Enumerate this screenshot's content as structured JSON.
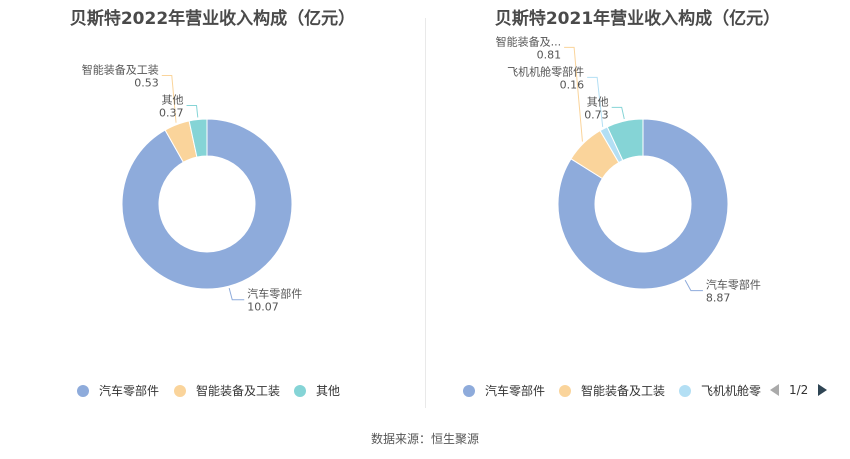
{
  "chart_data": [
    {
      "type": "pie",
      "title": "贝斯特2022年营业收入构成（亿元）",
      "unit": "亿元",
      "categories": [
        "汽车零部件",
        "智能装备及工装",
        "其他"
      ],
      "values": [
        10.07,
        0.53,
        0.37
      ],
      "label_text": [
        "汽车零部件",
        "智能装备及工装",
        "其他"
      ],
      "value_text": [
        "10.07",
        "0.53",
        "0.37"
      ],
      "colors": [
        "#8eabdb",
        "#fad49b",
        "#85d4d6"
      ],
      "legend": [
        "汽车零部件",
        "智能装备及工装",
        "其他"
      ],
      "legend_colors": [
        "#8eabdb",
        "#fad49b",
        "#85d4d6"
      ],
      "legend_position": "bottom"
    },
    {
      "type": "pie",
      "title": "贝斯特2021年营业收入构成（亿元）",
      "unit": "亿元",
      "categories": [
        "汽车零部件",
        "智能装备及工装",
        "飞机机舱零部件",
        "其他"
      ],
      "values": [
        8.87,
        0.81,
        0.16,
        0.73
      ],
      "label_text": [
        "汽车零部件",
        "智能装备及...",
        "飞机机舱零部件",
        "其他"
      ],
      "value_text": [
        "8.87",
        "0.81",
        "0.16",
        "0.73"
      ],
      "colors": [
        "#8eabdb",
        "#fad49b",
        "#b3dff4",
        "#85d4d6"
      ],
      "legend": [
        "汽车零部件",
        "智能装备及工装",
        "飞机机舱零"
      ],
      "legend_colors": [
        "#8eabdb",
        "#fad49b",
        "#b3dff4"
      ],
      "legend_position": "bottom"
    }
  ],
  "pager": {
    "text": "1/2"
  },
  "source": "数据来源：恒生聚源"
}
